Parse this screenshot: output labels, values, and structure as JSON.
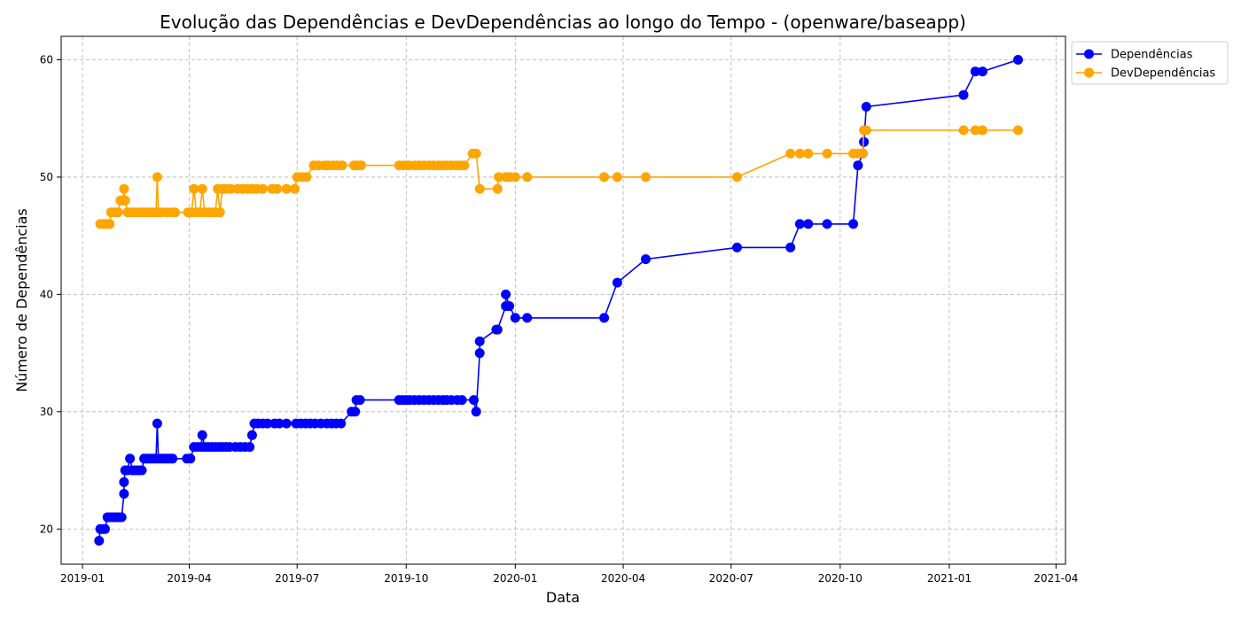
{
  "chart_data": {
    "type": "line",
    "title": "Evolução das Dependências e DevDependências ao longo do Tempo - (openware/baseapp)",
    "xlabel": "Data",
    "ylabel": "Número de Dependências",
    "xlim": [
      "2018-12-14",
      "2021-04-09"
    ],
    "ylim": [
      17,
      62
    ],
    "x_ticks": [
      "2019-01-01",
      "2019-04-01",
      "2019-07-01",
      "2019-10-01",
      "2020-01-01",
      "2020-04-01",
      "2020-07-01",
      "2020-10-01",
      "2021-01-01",
      "2021-04-01"
    ],
    "x_tick_labels": [
      "2019-01",
      "2019-04",
      "2019-07",
      "2019-10",
      "2020-01",
      "2020-04",
      "2020-07",
      "2020-10",
      "2021-01",
      "2021-04"
    ],
    "y_ticks": [
      20,
      30,
      40,
      50,
      60
    ],
    "y_tick_labels": [
      "20",
      "30",
      "40",
      "50",
      "60"
    ],
    "grid": true,
    "legend_position": "outside-top-right",
    "series": [
      {
        "name": "Dependências",
        "color": "#0000ff",
        "points": [
          [
            "2019-01-15",
            19
          ],
          [
            "2019-01-16",
            20
          ],
          [
            "2019-01-18",
            20
          ],
          [
            "2019-01-20",
            20
          ],
          [
            "2019-01-22",
            21
          ],
          [
            "2019-01-24",
            21
          ],
          [
            "2019-01-26",
            21
          ],
          [
            "2019-01-28",
            21
          ],
          [
            "2019-01-30",
            21
          ],
          [
            "2019-02-01",
            21
          ],
          [
            "2019-02-03",
            21
          ],
          [
            "2019-02-05",
            23
          ],
          [
            "2019-02-05",
            24
          ],
          [
            "2019-02-06",
            25
          ],
          [
            "2019-02-08",
            25
          ],
          [
            "2019-02-10",
            26
          ],
          [
            "2019-02-12",
            25
          ],
          [
            "2019-02-14",
            25
          ],
          [
            "2019-02-16",
            25
          ],
          [
            "2019-02-18",
            25
          ],
          [
            "2019-02-20",
            25
          ],
          [
            "2019-02-22",
            26
          ],
          [
            "2019-02-24",
            26
          ],
          [
            "2019-02-26",
            26
          ],
          [
            "2019-02-28",
            26
          ],
          [
            "2019-03-02",
            26
          ],
          [
            "2019-03-04",
            26
          ],
          [
            "2019-03-05",
            29
          ],
          [
            "2019-03-06",
            26
          ],
          [
            "2019-03-08",
            26
          ],
          [
            "2019-03-10",
            26
          ],
          [
            "2019-03-12",
            26
          ],
          [
            "2019-03-14",
            26
          ],
          [
            "2019-03-16",
            26
          ],
          [
            "2019-03-18",
            26
          ],
          [
            "2019-03-30",
            26
          ],
          [
            "2019-04-02",
            26
          ],
          [
            "2019-04-05",
            27
          ],
          [
            "2019-04-08",
            27
          ],
          [
            "2019-04-11",
            27
          ],
          [
            "2019-04-12",
            28
          ],
          [
            "2019-04-14",
            27
          ],
          [
            "2019-04-17",
            27
          ],
          [
            "2019-04-20",
            27
          ],
          [
            "2019-04-23",
            27
          ],
          [
            "2019-04-26",
            27
          ],
          [
            "2019-04-29",
            27
          ],
          [
            "2019-05-02",
            27
          ],
          [
            "2019-05-05",
            27
          ],
          [
            "2019-05-10",
            27
          ],
          [
            "2019-05-14",
            27
          ],
          [
            "2019-05-18",
            27
          ],
          [
            "2019-05-22",
            27
          ],
          [
            "2019-05-24",
            28
          ],
          [
            "2019-05-26",
            29
          ],
          [
            "2019-05-29",
            29
          ],
          [
            "2019-06-02",
            29
          ],
          [
            "2019-06-06",
            29
          ],
          [
            "2019-06-12",
            29
          ],
          [
            "2019-06-16",
            29
          ],
          [
            "2019-06-22",
            29
          ],
          [
            "2019-06-30",
            29
          ],
          [
            "2019-07-04",
            29
          ],
          [
            "2019-07-08",
            29
          ],
          [
            "2019-07-12",
            29
          ],
          [
            "2019-07-16",
            29
          ],
          [
            "2019-07-21",
            29
          ],
          [
            "2019-07-26",
            29
          ],
          [
            "2019-07-30",
            29
          ],
          [
            "2019-08-03",
            29
          ],
          [
            "2019-08-07",
            29
          ],
          [
            "2019-08-16",
            30
          ],
          [
            "2019-08-19",
            30
          ],
          [
            "2019-08-20",
            31
          ],
          [
            "2019-08-23",
            31
          ],
          [
            "2019-09-25",
            31
          ],
          [
            "2019-09-28",
            31
          ],
          [
            "2019-10-01",
            31
          ],
          [
            "2019-10-04",
            31
          ],
          [
            "2019-10-08",
            31
          ],
          [
            "2019-10-12",
            31
          ],
          [
            "2019-10-16",
            31
          ],
          [
            "2019-10-20",
            31
          ],
          [
            "2019-10-24",
            31
          ],
          [
            "2019-10-28",
            31
          ],
          [
            "2019-11-01",
            31
          ],
          [
            "2019-11-04",
            31
          ],
          [
            "2019-11-08",
            31
          ],
          [
            "2019-11-13",
            31
          ],
          [
            "2019-11-17",
            31
          ],
          [
            "2019-11-27",
            31
          ],
          [
            "2019-11-29",
            30
          ],
          [
            "2019-12-02",
            35
          ],
          [
            "2019-12-02",
            36
          ],
          [
            "2019-12-16",
            37
          ],
          [
            "2019-12-17",
            37
          ],
          [
            "2019-12-24",
            39
          ],
          [
            "2019-12-24",
            40
          ],
          [
            "2019-12-27",
            39
          ],
          [
            "2020-01-01",
            38
          ],
          [
            "2020-01-11",
            38
          ],
          [
            "2020-03-16",
            38
          ],
          [
            "2020-03-27",
            41
          ],
          [
            "2020-04-20",
            43
          ],
          [
            "2020-07-06",
            44
          ],
          [
            "2020-08-20",
            44
          ],
          [
            "2020-08-28",
            46
          ],
          [
            "2020-09-04",
            46
          ],
          [
            "2020-09-20",
            46
          ],
          [
            "2020-10-12",
            46
          ],
          [
            "2020-10-16",
            51
          ],
          [
            "2020-10-20",
            52
          ],
          [
            "2020-10-21",
            53
          ],
          [
            "2020-10-23",
            56
          ],
          [
            "2021-01-13",
            57
          ],
          [
            "2021-01-23",
            59
          ],
          [
            "2021-01-29",
            59
          ],
          [
            "2021-02-28",
            60
          ]
        ]
      },
      {
        "name": "DevDependências",
        "color": "#ffa500",
        "points": [
          [
            "2019-01-16",
            46
          ],
          [
            "2019-01-18",
            46
          ],
          [
            "2019-01-20",
            46
          ],
          [
            "2019-01-22",
            46
          ],
          [
            "2019-01-24",
            46
          ],
          [
            "2019-01-25",
            47
          ],
          [
            "2019-01-28",
            47
          ],
          [
            "2019-01-31",
            47
          ],
          [
            "2019-02-02",
            48
          ],
          [
            "2019-02-04",
            48
          ],
          [
            "2019-02-05",
            49
          ],
          [
            "2019-02-06",
            48
          ],
          [
            "2019-02-08",
            47
          ],
          [
            "2019-02-11",
            47
          ],
          [
            "2019-02-14",
            47
          ],
          [
            "2019-02-17",
            47
          ],
          [
            "2019-02-20",
            47
          ],
          [
            "2019-02-23",
            47
          ],
          [
            "2019-02-26",
            47
          ],
          [
            "2019-03-01",
            47
          ],
          [
            "2019-03-04",
            47
          ],
          [
            "2019-03-05",
            50
          ],
          [
            "2019-03-06",
            47
          ],
          [
            "2019-03-09",
            47
          ],
          [
            "2019-03-13",
            47
          ],
          [
            "2019-03-17",
            47
          ],
          [
            "2019-03-20",
            47
          ],
          [
            "2019-03-31",
            47
          ],
          [
            "2019-04-03",
            47
          ],
          [
            "2019-04-05",
            49
          ],
          [
            "2019-04-07",
            47
          ],
          [
            "2019-04-10",
            47
          ],
          [
            "2019-04-12",
            49
          ],
          [
            "2019-04-14",
            47
          ],
          [
            "2019-04-17",
            47
          ],
          [
            "2019-04-20",
            47
          ],
          [
            "2019-04-23",
            47
          ],
          [
            "2019-04-25",
            49
          ],
          [
            "2019-04-27",
            47
          ],
          [
            "2019-04-29",
            49
          ],
          [
            "2019-05-02",
            49
          ],
          [
            "2019-05-06",
            49
          ],
          [
            "2019-05-12",
            49
          ],
          [
            "2019-05-16",
            49
          ],
          [
            "2019-05-20",
            49
          ],
          [
            "2019-05-24",
            49
          ],
          [
            "2019-05-28",
            49
          ],
          [
            "2019-06-02",
            49
          ],
          [
            "2019-06-10",
            49
          ],
          [
            "2019-06-14",
            49
          ],
          [
            "2019-06-22",
            49
          ],
          [
            "2019-06-29",
            49
          ],
          [
            "2019-07-01",
            50
          ],
          [
            "2019-07-05",
            50
          ],
          [
            "2019-07-09",
            50
          ],
          [
            "2019-07-15",
            51
          ],
          [
            "2019-07-19",
            51
          ],
          [
            "2019-07-24",
            51
          ],
          [
            "2019-07-27",
            51
          ],
          [
            "2019-07-31",
            51
          ],
          [
            "2019-08-04",
            51
          ],
          [
            "2019-08-08",
            51
          ],
          [
            "2019-08-18",
            51
          ],
          [
            "2019-08-21",
            51
          ],
          [
            "2019-08-24",
            51
          ],
          [
            "2019-09-25",
            51
          ],
          [
            "2019-09-29",
            51
          ],
          [
            "2019-10-03",
            51
          ],
          [
            "2019-10-08",
            51
          ],
          [
            "2019-10-12",
            51
          ],
          [
            "2019-10-16",
            51
          ],
          [
            "2019-10-20",
            51
          ],
          [
            "2019-10-24",
            51
          ],
          [
            "2019-10-28",
            51
          ],
          [
            "2019-11-01",
            51
          ],
          [
            "2019-11-04",
            51
          ],
          [
            "2019-11-08",
            51
          ],
          [
            "2019-11-12",
            51
          ],
          [
            "2019-11-16",
            51
          ],
          [
            "2019-11-19",
            51
          ],
          [
            "2019-11-26",
            52
          ],
          [
            "2019-11-29",
            52
          ],
          [
            "2019-12-02",
            49
          ],
          [
            "2019-12-17",
            49
          ],
          [
            "2019-12-18",
            50
          ],
          [
            "2019-12-24",
            50
          ],
          [
            "2019-12-27",
            50
          ],
          [
            "2020-01-01",
            50
          ],
          [
            "2020-01-11",
            50
          ],
          [
            "2020-03-16",
            50
          ],
          [
            "2020-03-27",
            50
          ],
          [
            "2020-04-20",
            50
          ],
          [
            "2020-07-06",
            50
          ],
          [
            "2020-08-20",
            52
          ],
          [
            "2020-08-28",
            52
          ],
          [
            "2020-09-04",
            52
          ],
          [
            "2020-09-20",
            52
          ],
          [
            "2020-10-12",
            52
          ],
          [
            "2020-10-16",
            52
          ],
          [
            "2020-10-20",
            52
          ],
          [
            "2020-10-21",
            54
          ],
          [
            "2020-10-23",
            54
          ],
          [
            "2021-01-13",
            54
          ],
          [
            "2021-01-23",
            54
          ],
          [
            "2021-01-29",
            54
          ],
          [
            "2021-02-28",
            54
          ]
        ]
      }
    ]
  }
}
